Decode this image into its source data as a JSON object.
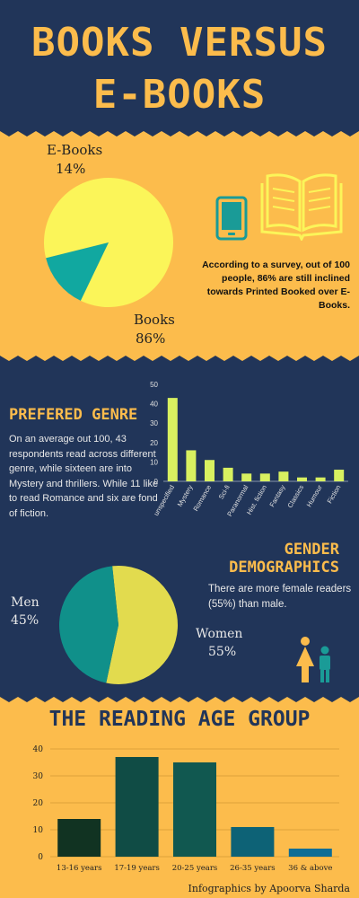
{
  "title": {
    "line1": "BOOKS VERSUS",
    "line2": "E-BOOKS"
  },
  "survey": {
    "ebooks_label": "E-Books",
    "ebooks_pct": "14%",
    "books_label": "Books",
    "books_pct": "86%",
    "text": "According to a survey, out of 100 people, 86% are still inclined towards  Printed Booked over E-Books.",
    "icons": [
      "tablet-icon",
      "open-book-icon"
    ]
  },
  "genre": {
    "heading": "PREFERED GENRE",
    "text": "On an average out 100, 43 respondents read across different genre,  while sixteen are into  Mystery and thrillers. While 11 like to read Romance and six are fond of fiction."
  },
  "gender": {
    "heading_line1": "GENDER",
    "heading_line2": "DEMOGRAPHICS",
    "text": "There are more female readers (55%) than male.",
    "men_label": "Men",
    "men_pct": "45%",
    "women_label": "Women",
    "women_pct": "55%",
    "icon": "women-men-icon"
  },
  "age": {
    "heading": "THE READING AGE GROUP"
  },
  "credit": "Infographics by Apoorva Sharda",
  "colors": {
    "navy": "#213559",
    "amber": "#fcbc4c",
    "pie_yellow": "#fbf559",
    "pie_teal": "#11a8a0",
    "bar_green": "#d8f060",
    "women_yellow": "#e2db4e",
    "men_teal": "#10908a",
    "age_bars": [
      "#113322",
      "#104c45",
      "#115850",
      "#0d6276",
      "#0d6d96"
    ]
  },
  "chart_data": [
    {
      "type": "pie",
      "title": "",
      "labels": [
        "Books",
        "E-Books"
      ],
      "values": [
        86,
        14
      ],
      "colors": [
        "#fbf559",
        "#11a8a0"
      ]
    },
    {
      "type": "bar",
      "title": "",
      "categories": [
        "unspecified",
        "Mystery",
        "Romance",
        "Sci-fi",
        "Paranormal",
        "Hist. fiction",
        "Fantasy",
        "Classics",
        "Humour",
        "Fiction"
      ],
      "values": [
        43,
        16,
        11,
        7,
        4,
        4,
        5,
        2,
        2,
        6
      ],
      "ylim": [
        0,
        50
      ],
      "yticks": [
        0,
        10,
        20,
        30,
        40,
        50
      ],
      "grid": false,
      "xlabel": "",
      "ylabel": ""
    },
    {
      "type": "pie",
      "title": "",
      "labels": [
        "Women",
        "Men"
      ],
      "values": [
        55,
        45
      ],
      "colors": [
        "#e2db4e",
        "#10908a"
      ]
    },
    {
      "type": "bar",
      "title": "",
      "categories": [
        "13-16 years",
        "17-19 years",
        "20-25 years",
        "26-35 years",
        "36 & above"
      ],
      "values": [
        14,
        37,
        35,
        11,
        3
      ],
      "ylim": [
        0,
        40
      ],
      "yticks": [
        0,
        10,
        20,
        30,
        40
      ],
      "grid": true,
      "xlabel": "",
      "ylabel": ""
    }
  ]
}
